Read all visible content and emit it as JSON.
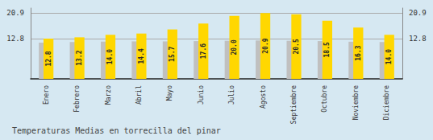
{
  "chart_data": {
    "type": "bar",
    "title": "Temperaturas Medias en torrecilla del pinar",
    "categories": [
      "Enero",
      "Febrero",
      "Marzo",
      "Abril",
      "Mayo",
      "Junio",
      "Julio",
      "Agosto",
      "Septiembre",
      "Octubre",
      "Noviembre",
      "Diciembre"
    ],
    "series": [
      {
        "color": "#C0C0C0",
        "values": [
          11.5,
          11.7,
          11.8,
          11.9,
          11.9,
          12.0,
          12.1,
          12.2,
          12.1,
          12.0,
          11.8,
          11.7
        ]
      },
      {
        "color": "#FFD700",
        "values": [
          12.8,
          13.2,
          14.0,
          14.4,
          15.7,
          17.6,
          20.0,
          20.9,
          20.5,
          18.5,
          16.3,
          14.0
        ],
        "value_labels": [
          "12.8",
          "13.2",
          "14.0",
          "14.4",
          "15.7",
          "17.6",
          "20.0",
          "20.9",
          "20.5",
          "18.5",
          "16.3",
          "14.0"
        ],
        "data_labels": true
      }
    ],
    "ylim": [
      0,
      22.5
    ],
    "yticks": [
      12.8,
      20.9
    ],
    "y2lim": [
      0,
      22.5
    ],
    "y2ticks": [
      12.8,
      20.9
    ],
    "grid": true
  }
}
